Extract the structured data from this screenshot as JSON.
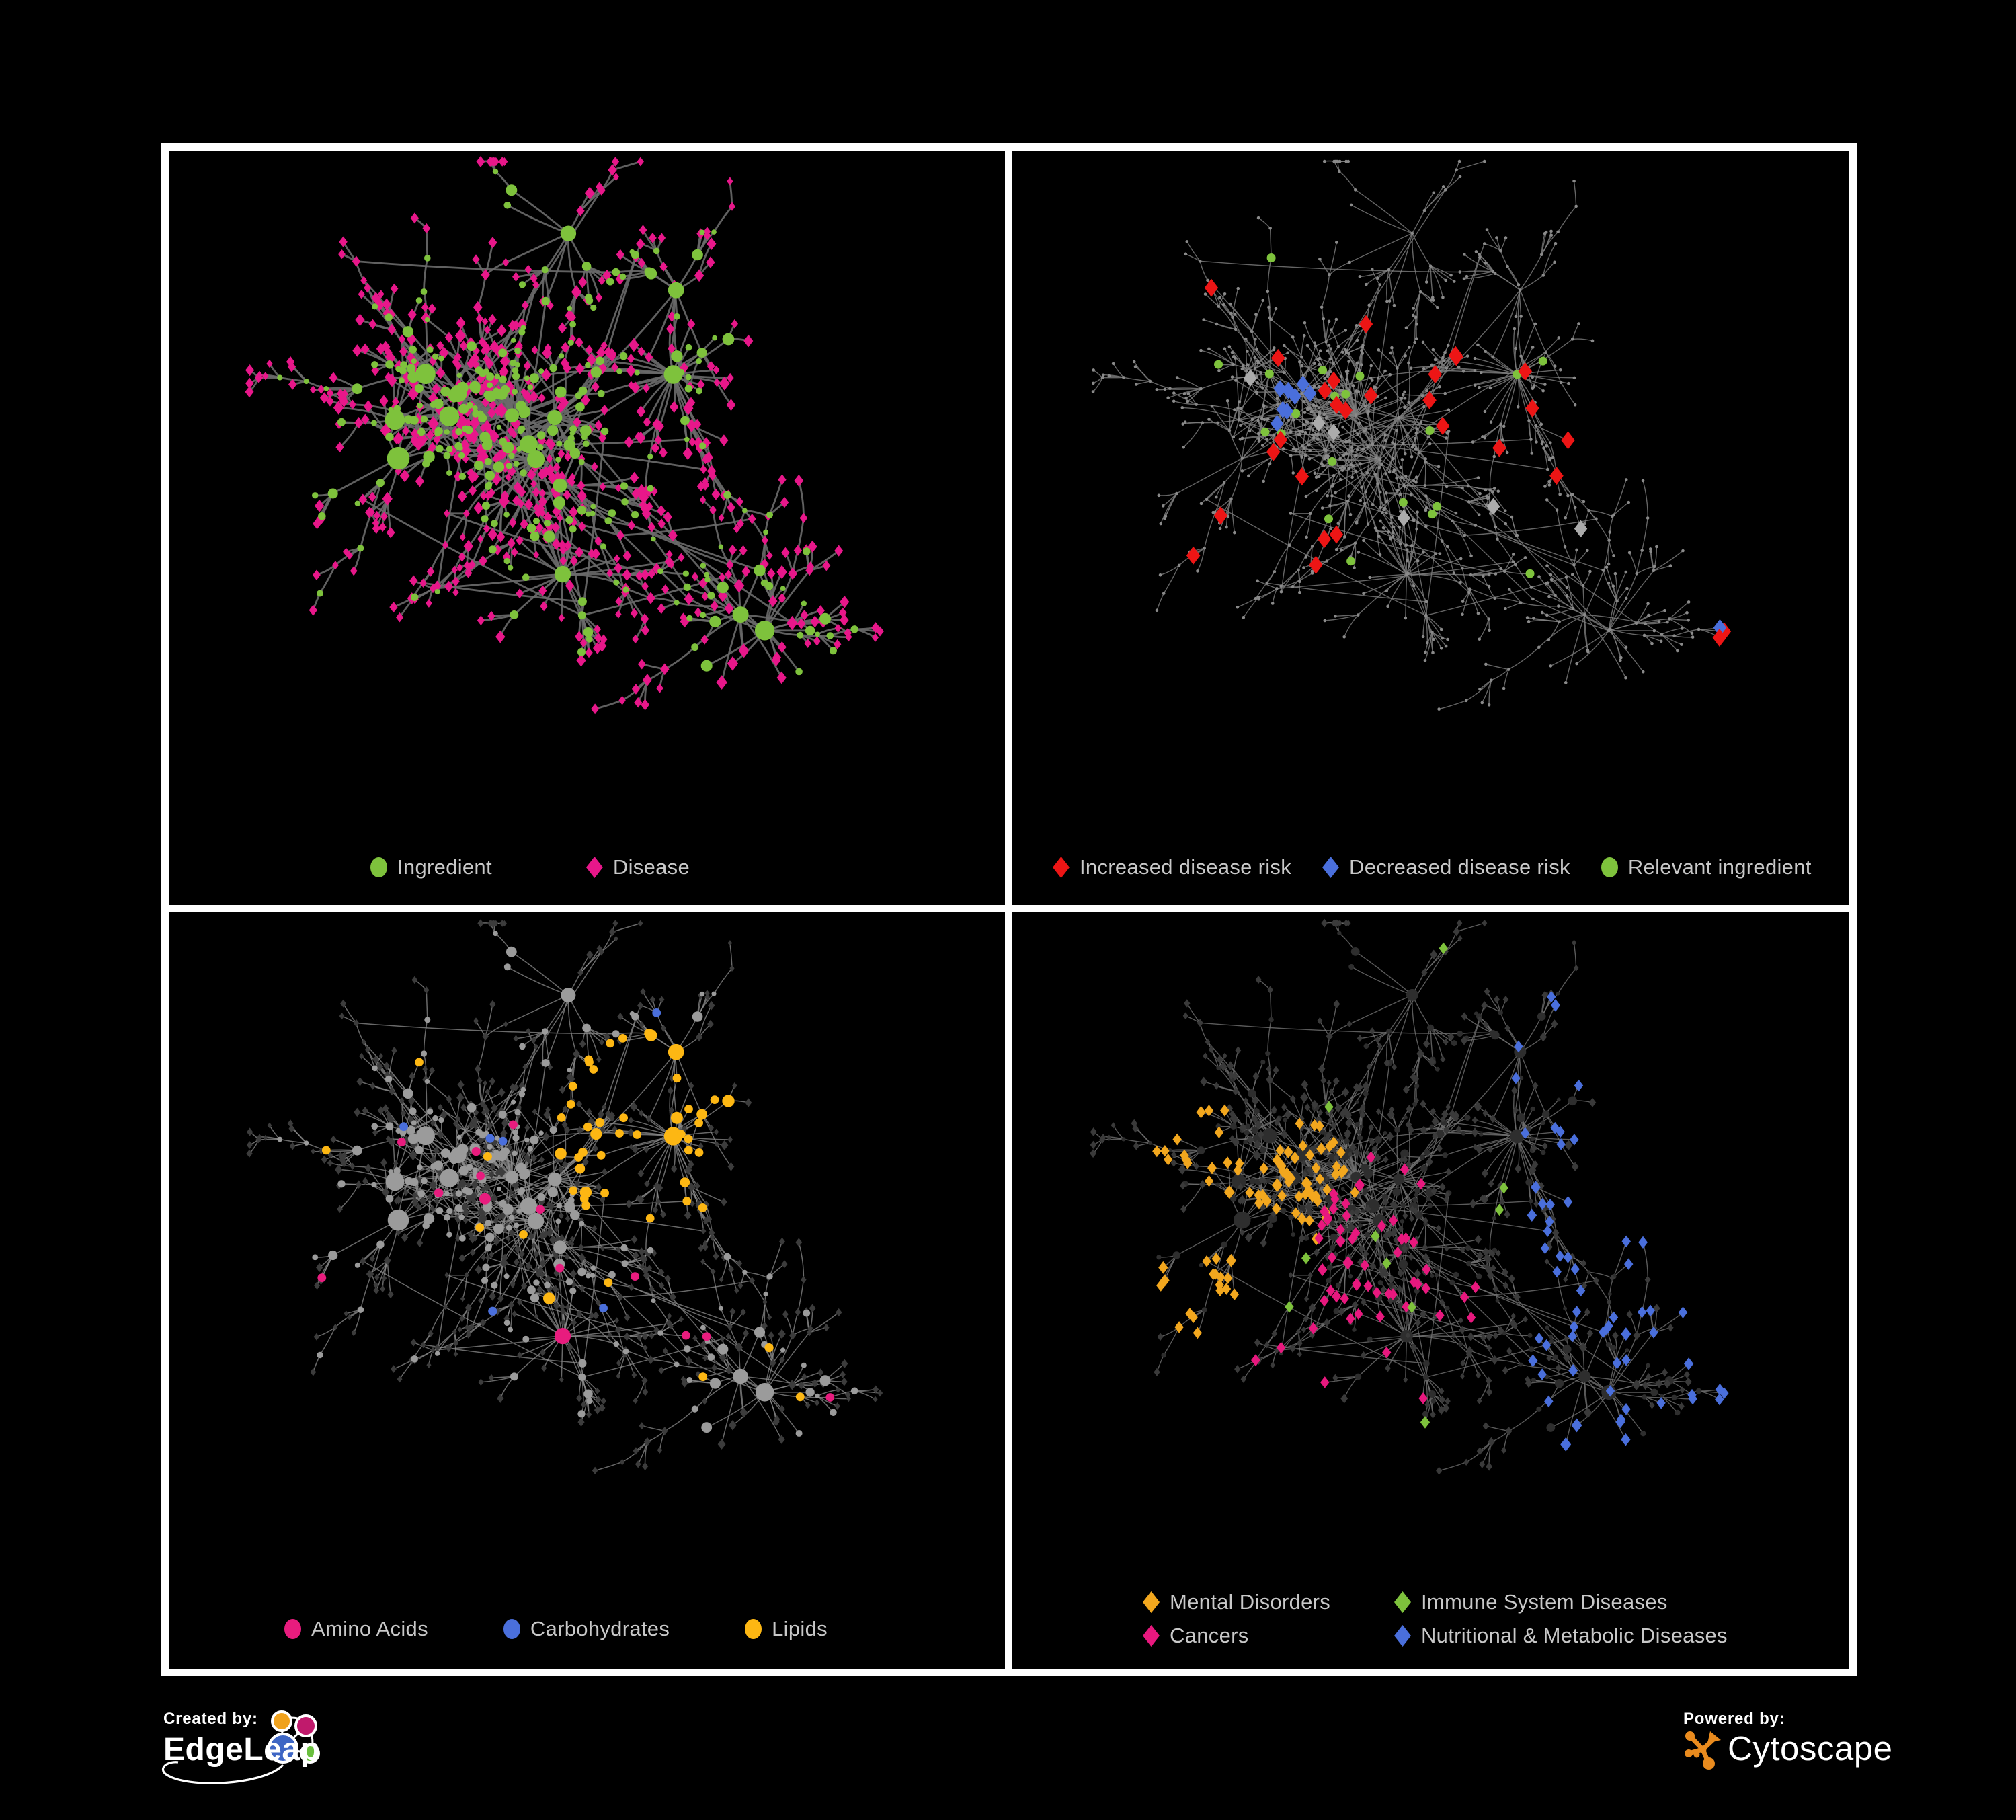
{
  "figure": {
    "background": "#000000",
    "frame_color": "#ffffff",
    "legend_text_color": "#C8C8C8"
  },
  "branding": {
    "created_by_label": "Created by:",
    "created_by_name": "EdgeLeap",
    "powered_by_label": "Powered by:",
    "powered_by_name": "Cytoscape",
    "cytoscape_orange": "#E98B1E",
    "edgeleap_blue": "#3E66C4",
    "edgeleap_orange": "#F0A21D",
    "edgeleap_magenta": "#C01A6C",
    "edgeleap_green": "#6ABF3F"
  },
  "panels": [
    {
      "id": "ingredient-disease",
      "legend": [
        {
          "label": "Ingredient",
          "shape": "circle",
          "color": "#7EC23C"
        },
        {
          "label": "Disease",
          "shape": "diamond",
          "color": "#E8178A"
        }
      ]
    },
    {
      "id": "disease-risk",
      "legend": [
        {
          "label": "Increased disease risk",
          "shape": "diamond",
          "color": "#ED1515"
        },
        {
          "label": "Decreased disease risk",
          "shape": "diamond",
          "color": "#4A6FDC"
        },
        {
          "label": "Relevant ingredient",
          "shape": "circle",
          "color": "#7EC23C"
        }
      ]
    },
    {
      "id": "nutrient-classes",
      "legend": [
        {
          "label": "Amino Acids",
          "shape": "circle",
          "color": "#E81C7E"
        },
        {
          "label": "Carbohydrates",
          "shape": "circle",
          "color": "#4A6FDC"
        },
        {
          "label": "Lipids",
          "shape": "circle",
          "color": "#FDB713"
        }
      ]
    },
    {
      "id": "disease-classes",
      "legend": [
        {
          "label": "Mental Disorders",
          "shape": "diamond",
          "color": "#F2A71E"
        },
        {
          "label": "Immune System Diseases",
          "shape": "diamond",
          "color": "#7EC23C"
        },
        {
          "label": "Cancers",
          "shape": "diamond",
          "color": "#E8187E"
        },
        {
          "label": "Nutritional & Metabolic Diseases",
          "shape": "diamond",
          "color": "#4A6FDC"
        }
      ]
    }
  ],
  "network_style": {
    "seed": 11,
    "p1": {
      "edge": "#6A6A6A",
      "edge_w": 2.8,
      "edge_o": 0.9,
      "ingredient": "#7EC23C",
      "disease": "#E8178A"
    },
    "p2": {
      "edge": "#7E7E7E",
      "edge_w": 1.4,
      "edge_o": 0.8,
      "base": "#8A8A8A",
      "red": "#ED1515",
      "blue": "#4A6FDC",
      "gray": "#ABABAB",
      "green": "#7EC23C"
    },
    "p3": {
      "edge": "#8C8C8C",
      "edge_w": 1.5,
      "edge_o": 0.75,
      "circle": "#9B9B9B",
      "diamond": "#3C3C3C",
      "amino": "#E81C7E",
      "carb": "#4A6FDC",
      "lipid": "#FDB713"
    },
    "p4": {
      "edge": "#707070",
      "edge_w": 1.4,
      "edge_o": 0.8,
      "circle": "#2E2E2E",
      "diamond": "#3A3A3A",
      "mental": "#F2A71E",
      "immune": "#7EC23C",
      "cancer": "#E8187E",
      "nutri": "#4A6FDC"
    }
  }
}
